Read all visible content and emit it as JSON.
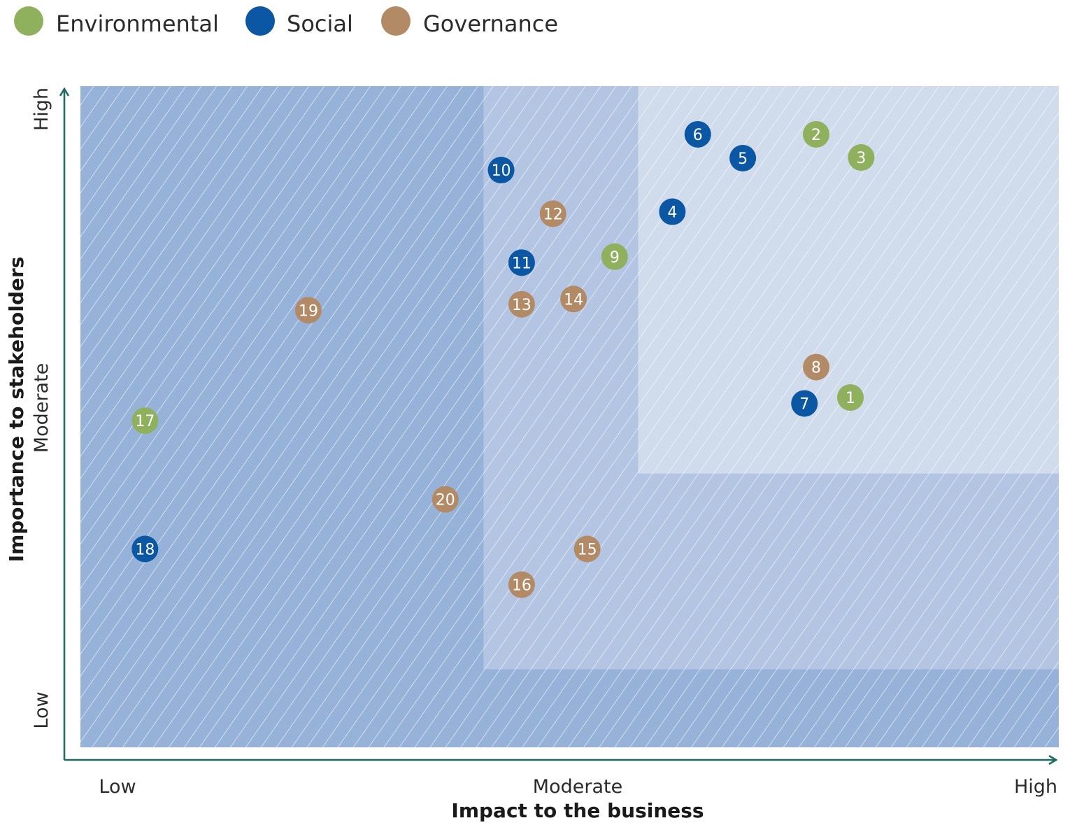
{
  "legend": [
    {
      "label": "Environmental",
      "color": "#8fb05c"
    },
    {
      "label": "Social",
      "color": "#0b57a4"
    },
    {
      "label": "Governance",
      "color": "#b38a66"
    }
  ],
  "chart_data": {
    "type": "scatter",
    "title": "",
    "xlabel": "Impact to the business",
    "ylabel": "Importance to stakeholders",
    "x_ticks": [
      "Low",
      "Moderate",
      "High"
    ],
    "y_ticks": [
      "Low",
      "Moderate",
      "High"
    ],
    "xlim": [
      0,
      100
    ],
    "ylim": [
      0,
      100
    ],
    "grid": false,
    "legend_position": "top-left",
    "zones": [
      {
        "name": "low",
        "color": "#97b2d8",
        "x": [
          0,
          100
        ],
        "y": [
          0,
          100
        ]
      },
      {
        "name": "moderate",
        "color": "#b3c5e2",
        "x": [
          41.2,
          100
        ],
        "y": [
          11.8,
          100
        ]
      },
      {
        "name": "high",
        "color": "#d0dbec",
        "x": [
          57,
          100
        ],
        "y": [
          41.4,
          100
        ]
      }
    ],
    "series": [
      {
        "name": "Environmental",
        "color": "#8fb05c",
        "points": [
          {
            "id": "1",
            "x": 78.7,
            "y": 52.9
          },
          {
            "id": "2",
            "x": 75.2,
            "y": 92.7
          },
          {
            "id": "3",
            "x": 79.8,
            "y": 89.2
          },
          {
            "id": "9",
            "x": 54.6,
            "y": 74.2
          },
          {
            "id": "17",
            "x": 6.6,
            "y": 49.4
          }
        ]
      },
      {
        "name": "Social",
        "color": "#0b57a4",
        "points": [
          {
            "id": "4",
            "x": 60.5,
            "y": 81.0
          },
          {
            "id": "5",
            "x": 67.7,
            "y": 89.1
          },
          {
            "id": "6",
            "x": 63.1,
            "y": 92.7
          },
          {
            "id": "7",
            "x": 74.0,
            "y": 52.0
          },
          {
            "id": "10",
            "x": 43.0,
            "y": 87.3
          },
          {
            "id": "11",
            "x": 45.1,
            "y": 73.3
          },
          {
            "id": "18",
            "x": 6.6,
            "y": 30.0
          }
        ]
      },
      {
        "name": "Governance",
        "color": "#b38a66",
        "points": [
          {
            "id": "8",
            "x": 75.2,
            "y": 57.5
          },
          {
            "id": "12",
            "x": 48.3,
            "y": 80.7
          },
          {
            "id": "13",
            "x": 45.1,
            "y": 67.0
          },
          {
            "id": "14",
            "x": 50.4,
            "y": 67.8
          },
          {
            "id": "15",
            "x": 51.8,
            "y": 30.0
          },
          {
            "id": "16",
            "x": 45.1,
            "y": 24.6
          },
          {
            "id": "19",
            "x": 23.3,
            "y": 66.1
          },
          {
            "id": "20",
            "x": 37.3,
            "y": 37.5
          }
        ]
      }
    ]
  }
}
